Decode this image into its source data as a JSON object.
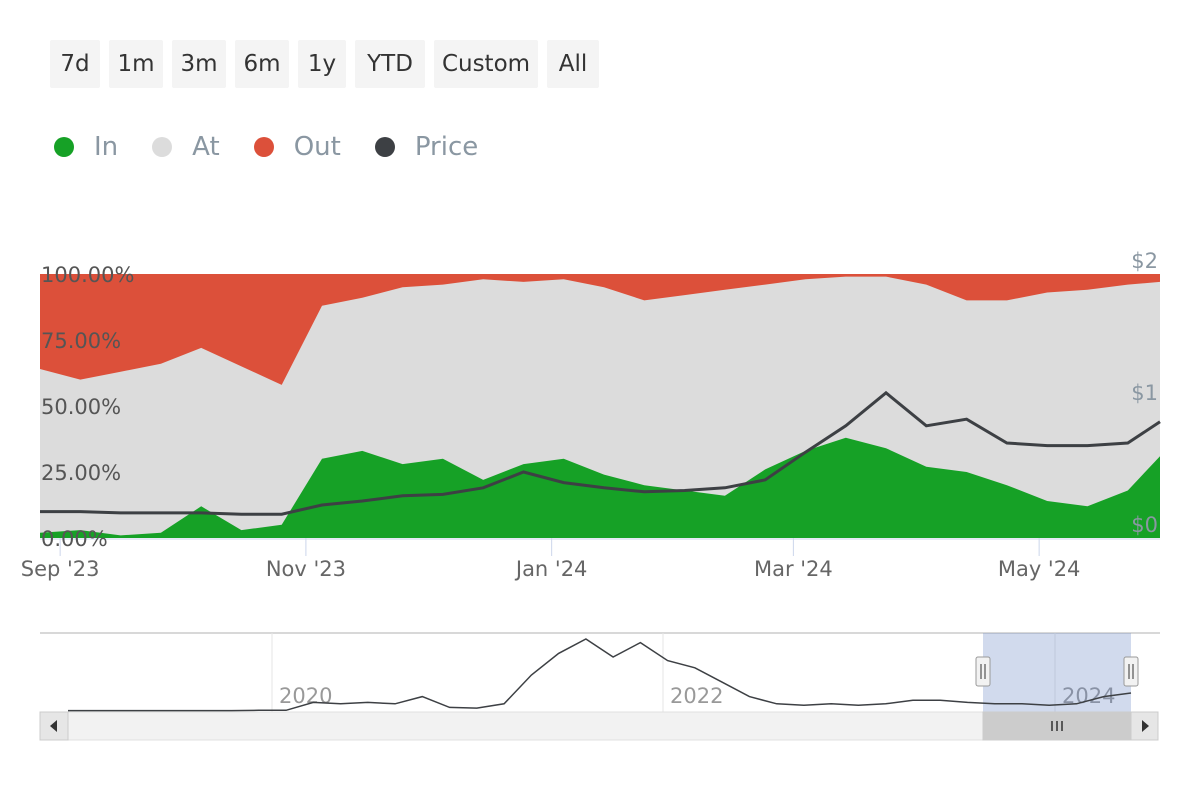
{
  "range_buttons": [
    "7d",
    "1m",
    "3m",
    "6m",
    "1y",
    "YTD",
    "Custom",
    "All"
  ],
  "legend": [
    {
      "label": "In",
      "color": "#16a126"
    },
    {
      "label": "At",
      "color": "#dcdcdc"
    },
    {
      "label": "Out",
      "color": "#dc503a"
    },
    {
      "label": "Price",
      "color": "#3d4044"
    }
  ],
  "chart_data": {
    "type": "area",
    "x_range": [
      "2023-08-27",
      "2024-05-31"
    ],
    "x_ticks": [
      "Sep '23",
      "Nov '23",
      "Jan '24",
      "Mar '24",
      "May '24"
    ],
    "y_left_ticks": [
      "0.00%",
      "25.00%",
      "50.00%",
      "75.00%",
      "100.00%"
    ],
    "y_left_range": [
      0,
      100
    ],
    "y_right_ticks": [
      "$0",
      "$1",
      "$2"
    ],
    "y_right_range": [
      0,
      2
    ],
    "x": [
      "2023-08-27",
      "2023-09-06",
      "2023-09-16",
      "2023-09-26",
      "2023-10-06",
      "2023-10-16",
      "2023-10-26",
      "2023-11-05",
      "2023-11-15",
      "2023-11-25",
      "2023-12-05",
      "2023-12-15",
      "2023-12-25",
      "2024-01-04",
      "2024-01-14",
      "2024-01-24",
      "2024-02-03",
      "2024-02-13",
      "2024-02-23",
      "2024-03-04",
      "2024-03-14",
      "2024-03-24",
      "2024-04-03",
      "2024-04-13",
      "2024-04-23",
      "2024-05-03",
      "2024-05-13",
      "2024-05-23",
      "2024-05-31"
    ],
    "series": [
      {
        "name": "In",
        "unit": "%",
        "values": [
          2,
          3,
          1,
          2,
          12,
          3,
          5,
          30,
          33,
          28,
          30,
          22,
          28,
          30,
          24,
          20,
          18,
          16,
          26,
          33,
          38,
          34,
          27,
          25,
          20,
          14,
          12,
          18,
          31
        ]
      },
      {
        "name": "At",
        "unit": "%",
        "values": [
          64,
          60,
          63,
          66,
          72,
          65,
          58,
          88,
          91,
          95,
          96,
          98,
          97,
          98,
          95,
          90,
          92,
          94,
          96,
          98,
          99,
          99,
          96,
          90,
          90,
          93,
          94,
          96,
          97
        ]
      },
      {
        "name": "Out",
        "unit": "%",
        "values": [
          36,
          40,
          37,
          34,
          28,
          35,
          42,
          12,
          9,
          5,
          4,
          2,
          3,
          2,
          5,
          10,
          8,
          6,
          4,
          2,
          1,
          1,
          4,
          10,
          10,
          7,
          6,
          4,
          3
        ]
      },
      {
        "name": "Price",
        "unit": "$",
        "values": [
          0.2,
          0.2,
          0.19,
          0.19,
          0.19,
          0.18,
          0.18,
          0.25,
          0.28,
          0.32,
          0.33,
          0.38,
          0.5,
          0.42,
          0.38,
          0.35,
          0.36,
          0.38,
          0.44,
          0.65,
          0.85,
          1.1,
          0.85,
          0.9,
          0.72,
          0.7,
          0.7,
          0.72,
          0.88
        ]
      }
    ],
    "navigator": {
      "x_ticks": [
        "2020",
        "2022",
        "2024"
      ],
      "price_history": [
        0.005,
        0.005,
        0.005,
        0.005,
        0.005,
        0.006,
        0.006,
        0.01,
        0.01,
        0.12,
        0.1,
        0.12,
        0.1,
        0.2,
        0.05,
        0.04,
        0.1,
        0.5,
        0.8,
        1.0,
        0.75,
        0.95,
        0.7,
        0.6,
        0.4,
        0.2,
        0.1,
        0.08,
        0.1,
        0.08,
        0.1,
        0.15,
        0.15,
        0.12,
        0.1,
        0.1,
        0.08,
        0.1,
        0.2,
        0.25
      ]
    }
  }
}
